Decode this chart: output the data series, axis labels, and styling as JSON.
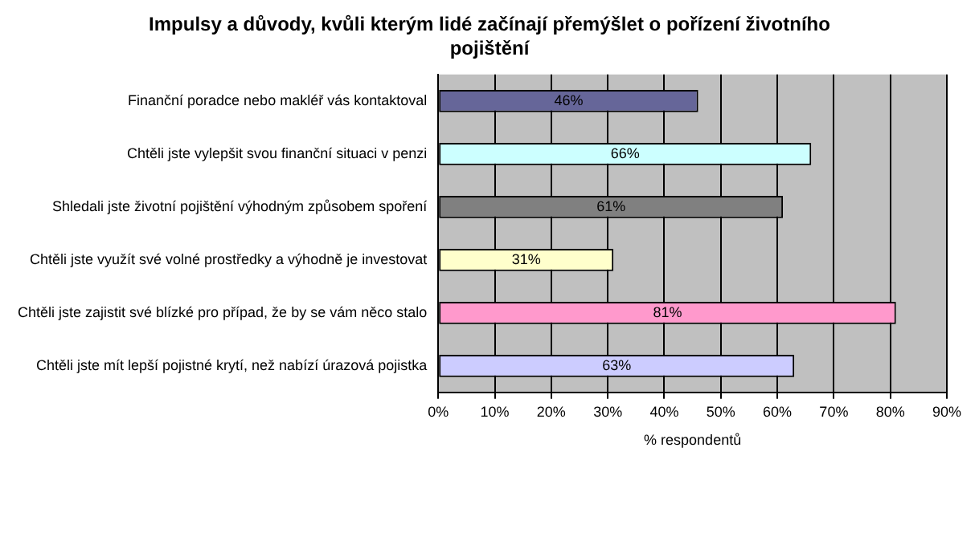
{
  "chart_data": {
    "type": "bar",
    "orientation": "horizontal",
    "title": "Impulsy a důvody, kvůli kterým lidé začínají přemýšlet o pořízení životního pojištění",
    "xlabel": "% respondentů",
    "categories": [
      "Finanční poradce nebo makléř vás kontaktoval",
      "Chtěli jste vylepšit svou finanční situaci v penzi",
      "Shledali jste životní pojištění výhodným způsobem spoření",
      "Chtěli jste využít své volné prostředky a výhodně je investovat",
      "Chtěli jste zajistit své blízké pro případ, že by se vám něco stalo",
      "Chtěli jste mít lepší pojistné krytí, než nabízí úrazová pojistka"
    ],
    "values": [
      46,
      66,
      61,
      31,
      81,
      63
    ],
    "value_labels": [
      "46%",
      "66%",
      "61%",
      "31%",
      "81%",
      "63%"
    ],
    "colors": [
      "#666699",
      "#ccffff",
      "#808080",
      "#ffffcc",
      "#ff99cc",
      "#ccccff"
    ],
    "xlim": [
      0,
      90
    ],
    "xticks": [
      {
        "value": 0,
        "label": "0%"
      },
      {
        "value": 10,
        "label": "10%"
      },
      {
        "value": 20,
        "label": "20%"
      },
      {
        "value": 30,
        "label": "30%"
      },
      {
        "value": 40,
        "label": "40%"
      },
      {
        "value": 50,
        "label": "50%"
      },
      {
        "value": 60,
        "label": "60%"
      },
      {
        "value": 70,
        "label": "70%"
      },
      {
        "value": 80,
        "label": "80%"
      },
      {
        "value": 90,
        "label": "90%"
      }
    ],
    "grid": "x",
    "legend": false
  }
}
